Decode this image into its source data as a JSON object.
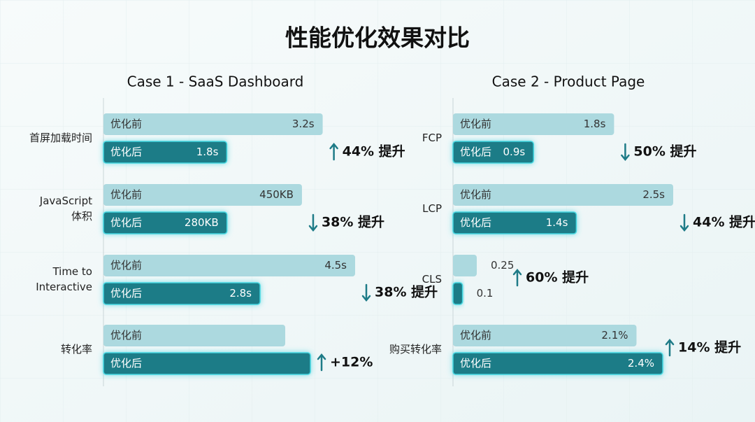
{
  "chart_data": {
    "type": "bar",
    "title": "性能优化效果对比",
    "before_label": "优化前",
    "after_label": "优化后",
    "colors": [
      "#acd9df",
      "#1e7b87"
    ],
    "panels": [
      {
        "subtitle": "Case 1 - SaaS Dashboard",
        "metrics": [
          {
            "name": [
              "首屏加载时间"
            ],
            "values": [
              3.2,
              1.8
            ],
            "value_labels": [
              "3.2s",
              "1.8s"
            ],
            "change": "44% 提升",
            "direction": "up"
          },
          {
            "name": [
              "JavaScript",
              "体积"
            ],
            "values": [
              450,
              280
            ],
            "value_labels": [
              "450KB",
              "280KB"
            ],
            "change": "38% 提升",
            "direction": "down"
          },
          {
            "name": [
              "Time to",
              "Interactive"
            ],
            "values": [
              4.5,
              2.8
            ],
            "value_labels": [
              "4.5s",
              "2.8s"
            ],
            "change": "38% 提升",
            "direction": "down"
          },
          {
            "name": [
              "转化率"
            ],
            "values": [
              null,
              null
            ],
            "change": "+12%",
            "direction": "up"
          }
        ]
      },
      {
        "subtitle": "Case 2 - Product Page",
        "metrics": [
          {
            "name": [
              "FCP"
            ],
            "values": [
              1.8,
              0.9
            ],
            "value_labels": [
              "1.8s",
              "0.9s"
            ],
            "change": "50% 提升",
            "direction": "down"
          },
          {
            "name": [
              "LCP"
            ],
            "values": [
              2.5,
              1.4
            ],
            "value_labels": [
              "2.5s",
              "1.4s"
            ],
            "change": "44% 提升",
            "direction": "down"
          },
          {
            "name": [
              "CLS"
            ],
            "values": [
              0.25,
              0.1
            ],
            "value_labels": [
              "0.25",
              "0.1"
            ],
            "change": "60% 提升",
            "direction": "up"
          },
          {
            "name": [
              "购买转化率"
            ],
            "values": [
              2.1,
              2.4
            ],
            "value_labels": [
              "2.1%",
              "2.4%"
            ],
            "change": "14% 提升",
            "direction": "up"
          }
        ]
      }
    ]
  }
}
